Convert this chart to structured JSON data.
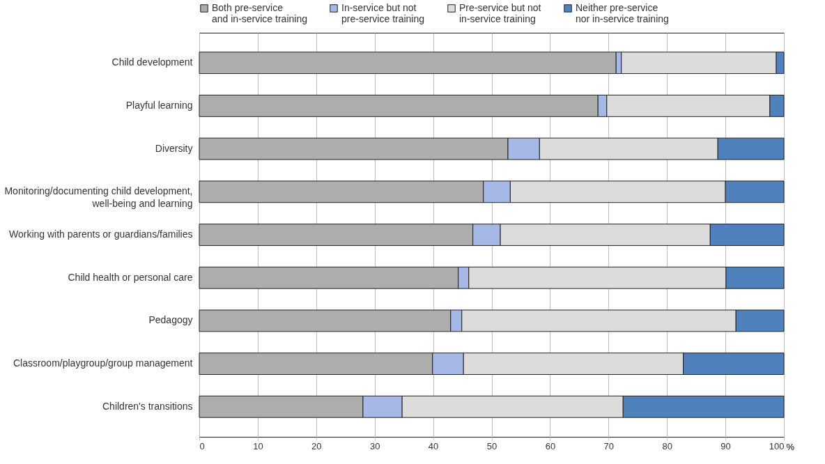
{
  "chart_data": {
    "type": "bar",
    "orientation": "horizontal",
    "stacked": true,
    "xlabel": "%",
    "legend": "top",
    "grid": "x",
    "categories": [
      "Child development",
      "Playful learning",
      "Diversity",
      "Monitoring/documenting child development, well-being and learning",
      "Working with parents or guardians/families",
      "Child health or personal care",
      "Pedagogy",
      "Classroom/playgroup/group management",
      "Children's transitions"
    ],
    "xlim": [
      0,
      100
    ],
    "xticks": [
      0,
      10,
      20,
      30,
      40,
      50,
      60,
      70,
      80,
      90,
      100
    ],
    "series": [
      {
        "name": "Both pre-service and in-service training",
        "color": "#adadad",
        "values": [
          71.3,
          68.2,
          52.8,
          48.6,
          46.8,
          44.3,
          43.0,
          39.9,
          28.0
        ]
      },
      {
        "name": "In-service but not pre-service training",
        "color": "#a6b8e6",
        "values": [
          0.9,
          1.5,
          5.4,
          4.6,
          4.7,
          1.8,
          1.9,
          5.3,
          6.7
        ]
      },
      {
        "name": "Pre-service but not in-service training",
        "color": "#dcdcdc",
        "values": [
          26.5,
          27.9,
          30.5,
          36.8,
          35.9,
          44.0,
          46.9,
          37.6,
          37.8
        ]
      },
      {
        "name": "Neither pre-service nor in-service training",
        "color": "#4f81bd",
        "values": [
          1.3,
          2.4,
          11.3,
          10.0,
          12.6,
          9.9,
          8.2,
          17.2,
          27.5
        ]
      }
    ]
  }
}
